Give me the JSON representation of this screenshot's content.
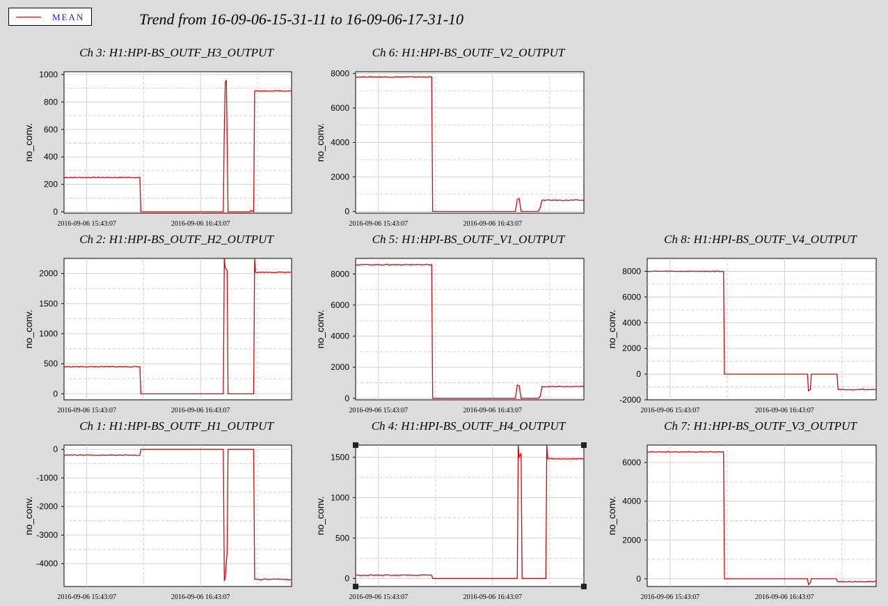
{
  "legend": {
    "label": "MEAN",
    "line_color": "#e00000"
  },
  "title": "Trend from 16-09-06-15-31-11 to 16-09-06-17-31-10",
  "colors": {
    "background": "#dcdcdc",
    "plot_bg": "#ffffff",
    "series": "#e00000",
    "grid": "#d0d0d0"
  },
  "chart_data": [
    {
      "id": "ch3",
      "type": "line",
      "title": "Ch 3: H1:HPI-BS_OUTF_H3_OUTPUT",
      "ylabel": "no_conv.",
      "x_ticks": [
        "2016-09-06 15:43:07",
        "2016-09-06 16:43:07"
      ],
      "x_range_minutes": [
        0,
        120
      ],
      "x_tick_minutes": [
        12,
        72
      ],
      "ylim": [
        -10,
        1020
      ],
      "y_ticks": [
        0,
        200,
        400,
        600,
        800,
        1000
      ],
      "grid": true,
      "series": [
        {
          "name": "MEAN",
          "x": [
            0,
            40,
            40.5,
            84,
            84.4,
            85,
            85.6,
            86.5,
            98,
            98.5,
            100,
            100.5,
            101,
            120
          ],
          "y": [
            250,
            250,
            0,
            0,
            500,
            940,
            960,
            0,
            0,
            10,
            0,
            880,
            880,
            880
          ]
        }
      ]
    },
    {
      "id": "ch6",
      "type": "line",
      "title": "Ch 6: H1:HPI-BS_OUTF_V2_OUTPUT",
      "ylabel": "no_conv.",
      "x_ticks": [
        "2016-09-06 15:43:07",
        "2016-09-06 16:43:07"
      ],
      "x_range_minutes": [
        0,
        120
      ],
      "x_tick_minutes": [
        12,
        72
      ],
      "ylim": [
        -100,
        8100
      ],
      "y_ticks": [
        0,
        2000,
        4000,
        6000,
        8000
      ],
      "grid": true,
      "series": [
        {
          "name": "MEAN",
          "x": [
            0,
            40,
            40.5,
            84,
            85,
            86,
            87,
            96,
            97,
            98,
            120
          ],
          "y": [
            7800,
            7800,
            0,
            0,
            700,
            750,
            0,
            0,
            200,
            650,
            650
          ]
        }
      ]
    },
    {
      "id": "ch2",
      "type": "line",
      "title": "Ch 2: H1:HPI-BS_OUTF_H2_OUTPUT",
      "ylabel": "no_conv.",
      "x_ticks": [
        "2016-09-06 15:43:07",
        "2016-09-06 16:43:07"
      ],
      "x_range_minutes": [
        0,
        120
      ],
      "x_tick_minutes": [
        12,
        72
      ],
      "ylim": [
        -100,
        2250
      ],
      "y_ticks": [
        0,
        500,
        1000,
        1500,
        2000
      ],
      "grid": true,
      "series": [
        {
          "name": "MEAN",
          "x": [
            0,
            40,
            40.5,
            84,
            84.5,
            85,
            86,
            86.5,
            100,
            100.5,
            101,
            120
          ],
          "y": [
            450,
            450,
            0,
            0,
            2250,
            2100,
            2050,
            0,
            0,
            2250,
            2020,
            2020
          ]
        }
      ]
    },
    {
      "id": "ch5",
      "type": "line",
      "title": "Ch 5: H1:HPI-BS_OUTF_V1_OUTPUT",
      "ylabel": "no_conv.",
      "x_ticks": [
        "2016-09-06 15:43:07",
        "2016-09-06 16:43:07"
      ],
      "x_range_minutes": [
        0,
        120
      ],
      "x_tick_minutes": [
        12,
        72
      ],
      "ylim": [
        -100,
        9000
      ],
      "y_ticks": [
        0,
        2000,
        4000,
        6000,
        8000
      ],
      "grid": true,
      "series": [
        {
          "name": "MEAN",
          "x": [
            0,
            40,
            40.5,
            84,
            85,
            86,
            87,
            96,
            97,
            98,
            120
          ],
          "y": [
            8600,
            8600,
            0,
            0,
            850,
            800,
            0,
            0,
            100,
            750,
            750
          ]
        }
      ]
    },
    {
      "id": "ch8",
      "type": "line",
      "title": "Ch 8: H1:HPI-BS_OUTF_V4_OUTPUT",
      "ylabel": "no_conv.",
      "x_ticks": [
        "2016-09-06 15:43:07",
        "2016-09-06 16:43:07"
      ],
      "x_range_minutes": [
        0,
        120
      ],
      "x_tick_minutes": [
        12,
        72
      ],
      "ylim": [
        -2000,
        9000
      ],
      "y_ticks": [
        -2000,
        0,
        2000,
        4000,
        6000,
        8000
      ],
      "grid": true,
      "series": [
        {
          "name": "MEAN",
          "x": [
            0,
            40,
            40.5,
            84,
            84.5,
            85.5,
            86,
            99.5,
            100,
            120
          ],
          "y": [
            8000,
            8000,
            0,
            0,
            -1300,
            -1200,
            0,
            0,
            -1200,
            -1200
          ]
        }
      ]
    },
    {
      "id": "ch1",
      "type": "line",
      "title": "Ch 1: H1:HPI-BS_OUTF_H1_OUTPUT",
      "ylabel": "no_conv.",
      "x_ticks": [
        "2016-09-06 15:43:07",
        "2016-09-06 16:43:07"
      ],
      "x_range_minutes": [
        0,
        120
      ],
      "x_tick_minutes": [
        12,
        72
      ],
      "ylim": [
        -4800,
        150
      ],
      "y_ticks": [
        -4000,
        -3000,
        -2000,
        -1000,
        0
      ],
      "grid": true,
      "series": [
        {
          "name": "MEAN",
          "x": [
            0,
            40,
            40.5,
            84,
            84.5,
            85,
            86,
            86.5,
            100,
            100.5,
            120
          ],
          "y": [
            -200,
            -200,
            0,
            0,
            -4600,
            -4500,
            -3600,
            0,
            0,
            -4550,
            -4550
          ]
        }
      ]
    },
    {
      "id": "ch4",
      "type": "line",
      "title": "Ch 4: H1:HPI-BS_OUTF_H4_OUTPUT",
      "ylabel": "no_conv.",
      "x_ticks": [
        "2016-09-06 15:43:07",
        "2016-09-06 16:43:07"
      ],
      "x_range_minutes": [
        0,
        120
      ],
      "x_tick_minutes": [
        12,
        72
      ],
      "ylim": [
        -100,
        1650
      ],
      "y_ticks": [
        0,
        500,
        1000,
        1500
      ],
      "grid": true,
      "series": [
        {
          "name": "MEAN",
          "x": [
            0,
            40,
            40.5,
            85,
            85.5,
            86,
            87,
            87.5,
            100,
            100.5,
            101,
            120
          ],
          "y": [
            40,
            40,
            0,
            0,
            1650,
            1500,
            1550,
            0,
            0,
            1650,
            1480,
            1480
          ]
        }
      ]
    },
    {
      "id": "ch7",
      "type": "line",
      "title": "Ch 7: H1:HPI-BS_OUTF_V3_OUTPUT",
      "ylabel": "no_conv.",
      "x_ticks": [
        "2016-09-06 15:43:07",
        "2016-09-06 16:43:07"
      ],
      "x_range_minutes": [
        0,
        120
      ],
      "x_tick_minutes": [
        12,
        72
      ],
      "ylim": [
        -400,
        6900
      ],
      "y_ticks": [
        0,
        2000,
        4000,
        6000
      ],
      "grid": true,
      "series": [
        {
          "name": "MEAN",
          "x": [
            0,
            40,
            40.5,
            84,
            84.5,
            85.5,
            86,
            99,
            99.5,
            100,
            120
          ],
          "y": [
            6550,
            6550,
            0,
            0,
            -300,
            -200,
            0,
            0,
            -100,
            -150,
            -150
          ]
        }
      ]
    }
  ]
}
